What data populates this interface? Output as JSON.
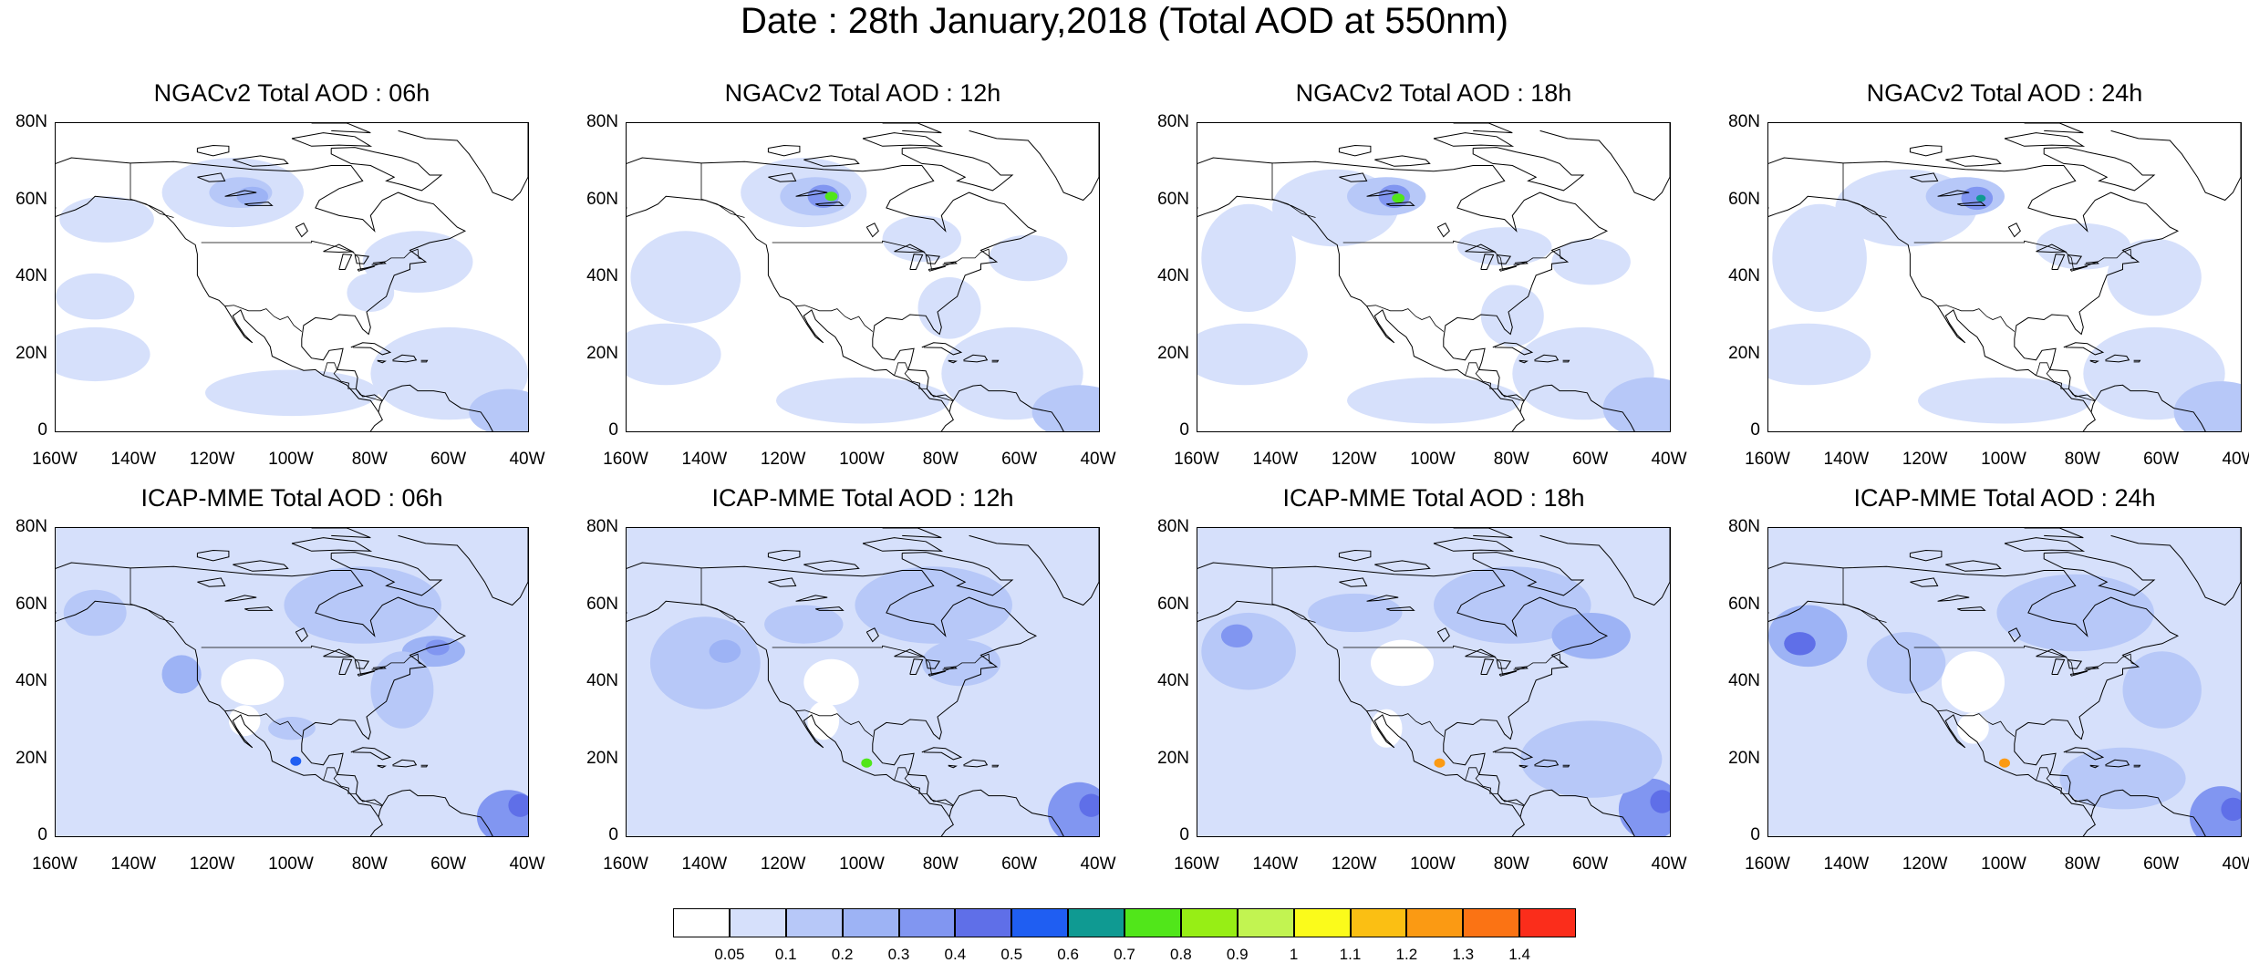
{
  "title": "Date : 28th January,2018 (Total AOD at 550nm)",
  "axes": {
    "lat_labels": [
      "80N",
      "60N",
      "40N",
      "20N",
      "0"
    ],
    "lon_labels": [
      "160W",
      "140W",
      "120W",
      "100W",
      "80W",
      "60W",
      "40W"
    ],
    "lat_range": [
      0,
      80
    ],
    "lon_range": [
      -160,
      -40
    ]
  },
  "panels": [
    {
      "title": "NGACv2 Total AOD : 06h",
      "model": "NGACv2",
      "hour": "06h"
    },
    {
      "title": "NGACv2 Total AOD : 12h",
      "model": "NGACv2",
      "hour": "12h"
    },
    {
      "title": "NGACv2 Total AOD : 18h",
      "model": "NGACv2",
      "hour": "18h"
    },
    {
      "title": "NGACv2 Total AOD : 24h",
      "model": "NGACv2",
      "hour": "24h"
    },
    {
      "title": "ICAP-MME Total AOD : 06h",
      "model": "ICAP-MME",
      "hour": "06h"
    },
    {
      "title": "ICAP-MME Total AOD : 12h",
      "model": "ICAP-MME",
      "hour": "12h"
    },
    {
      "title": "ICAP-MME Total AOD : 18h",
      "model": "ICAP-MME",
      "hour": "18h"
    },
    {
      "title": "ICAP-MME Total AOD : 24h",
      "model": "ICAP-MME",
      "hour": "24h"
    }
  ],
  "colorbar": {
    "labels": [
      "0.05",
      "0.1",
      "0.2",
      "0.3",
      "0.4",
      "0.5",
      "0.6",
      "0.7",
      "0.8",
      "0.9",
      "1",
      "1.1",
      "1.2",
      "1.3",
      "1.4"
    ],
    "colors": [
      "#ffffff",
      "#d6e0fb",
      "#b7c8f8",
      "#9db3f5",
      "#8196f1",
      "#5f6fe8",
      "#1f5ef2",
      "#0f9a92",
      "#51e61a",
      "#97ee15",
      "#c2f451",
      "#fbfb1b",
      "#fbbf13",
      "#fb9a13",
      "#fb7314",
      "#fb2d1b"
    ]
  }
}
